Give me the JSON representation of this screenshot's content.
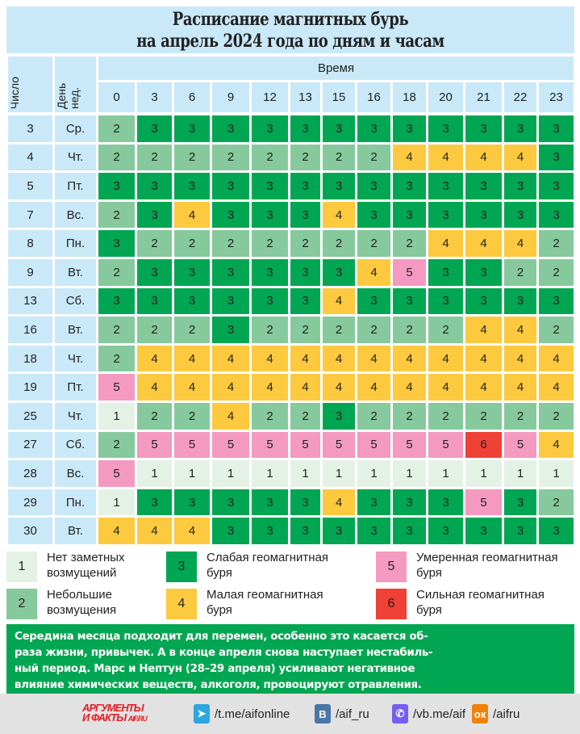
{
  "title": {
    "line1": "Расписание магнитных бурь",
    "line2": "на апрель 2024 года по дням и часам"
  },
  "header": {
    "date_label": "Число",
    "day_label": "День нед.",
    "time_label": "Время",
    "hours": [
      "0",
      "3",
      "6",
      "9",
      "12",
      "13",
      "15",
      "16",
      "18",
      "20",
      "21",
      "22",
      "23"
    ]
  },
  "colors": {
    "header": "#c9e9f8",
    "1": "#e3f2e4",
    "2": "#86c99c",
    "3": "#00a651",
    "4": "#fdc93f",
    "5": "#f49ac1",
    "6": "#ef4136"
  },
  "rows": [
    {
      "date": "3",
      "day": "Ср.",
      "values": [
        2,
        3,
        3,
        3,
        3,
        3,
        3,
        3,
        3,
        3,
        3,
        3,
        3
      ]
    },
    {
      "date": "4",
      "day": "Чт.",
      "values": [
        2,
        2,
        2,
        2,
        2,
        2,
        2,
        2,
        4,
        4,
        4,
        4,
        3
      ]
    },
    {
      "date": "5",
      "day": "Пт.",
      "values": [
        3,
        3,
        3,
        3,
        3,
        3,
        3,
        3,
        3,
        3,
        3,
        3,
        3
      ]
    },
    {
      "date": "7",
      "day": "Вс.",
      "values": [
        2,
        3,
        4,
        3,
        3,
        3,
        4,
        3,
        3,
        3,
        3,
        3,
        3
      ]
    },
    {
      "date": "8",
      "day": "Пн.",
      "values": [
        3,
        2,
        2,
        2,
        2,
        2,
        2,
        2,
        2,
        4,
        4,
        4,
        2
      ]
    },
    {
      "date": "9",
      "day": "Вт.",
      "values": [
        2,
        3,
        3,
        3,
        3,
        3,
        3,
        4,
        5,
        3,
        3,
        2,
        2
      ]
    },
    {
      "date": "13",
      "day": "Сб.",
      "values": [
        3,
        3,
        3,
        3,
        3,
        3,
        4,
        3,
        3,
        3,
        3,
        3,
        3
      ]
    },
    {
      "date": "16",
      "day": "Вт.",
      "values": [
        2,
        2,
        2,
        3,
        2,
        2,
        2,
        2,
        2,
        2,
        4,
        4,
        2
      ]
    },
    {
      "date": "18",
      "day": "Чт.",
      "values": [
        2,
        4,
        4,
        4,
        4,
        4,
        4,
        4,
        4,
        4,
        4,
        4,
        4
      ]
    },
    {
      "date": "19",
      "day": "Пт.",
      "values": [
        5,
        4,
        4,
        4,
        4,
        4,
        4,
        4,
        4,
        4,
        4,
        4,
        4
      ]
    },
    {
      "date": "25",
      "day": "Чт.",
      "values": [
        1,
        2,
        2,
        4,
        2,
        2,
        3,
        2,
        2,
        2,
        2,
        2,
        2
      ]
    },
    {
      "date": "27",
      "day": "Сб.",
      "values": [
        2,
        5,
        5,
        5,
        5,
        5,
        5,
        5,
        5,
        5,
        6,
        5,
        4
      ]
    },
    {
      "date": "28",
      "day": "Вс.",
      "values": [
        5,
        1,
        1,
        1,
        1,
        1,
        1,
        1,
        1,
        1,
        1,
        1,
        1
      ]
    },
    {
      "date": "29",
      "day": "Пн.",
      "values": [
        1,
        3,
        3,
        3,
        3,
        3,
        4,
        3,
        3,
        3,
        5,
        3,
        2
      ]
    },
    {
      "date": "30",
      "day": "Вт.",
      "values": [
        4,
        4,
        4,
        3,
        3,
        3,
        3,
        3,
        3,
        3,
        3,
        3,
        3
      ]
    }
  ],
  "legend": [
    {
      "level": "1",
      "line1": "Нет заметных",
      "line2": "возмущений"
    },
    {
      "level": "2",
      "line1": "Небольшие",
      "line2": "возмущения"
    },
    {
      "level": "3",
      "line1": "Слабая геомагнитная",
      "line2": "буря"
    },
    {
      "level": "4",
      "line1": "Малая геомагнитная",
      "line2": "буря"
    },
    {
      "level": "5",
      "line1": "Умеренная геомагнитная",
      "line2": "буря"
    },
    {
      "level": "6",
      "line1": "Сильная геомагнитная",
      "line2": "буря"
    }
  ],
  "note": {
    "lines": [
      "Середина месяца подходит для перемен, особенно это касается об-",
      "раза жизни, привычек. А в конце апреля снова наступает нестабиль-",
      "ный период. Марс и Нептун (28–29 апреля) усиливают негативное",
      "влияние химических веществ, алкоголя, провоцируют отравления."
    ]
  },
  "footer": {
    "logo": {
      "line1": "АРГУМЕНТЫ",
      "line2": "И ФАКТЫ",
      "site": "AIF.RU"
    },
    "social": [
      {
        "icon": "telegram-icon",
        "glyph": "➤",
        "color": "#2ea6e0",
        "text": "/t.me/aifonline"
      },
      {
        "icon": "vk-icon",
        "glyph": "В",
        "color": "#4a76a8",
        "text": "/aif_ru"
      },
      {
        "icon": "viber-icon",
        "glyph": "✆",
        "color": "#7360f2",
        "text": "/vb.me/aif"
      },
      {
        "icon": "odnoklassniki-icon",
        "glyph": "ок",
        "color": "#ee8208",
        "text": "/aifru"
      }
    ]
  }
}
